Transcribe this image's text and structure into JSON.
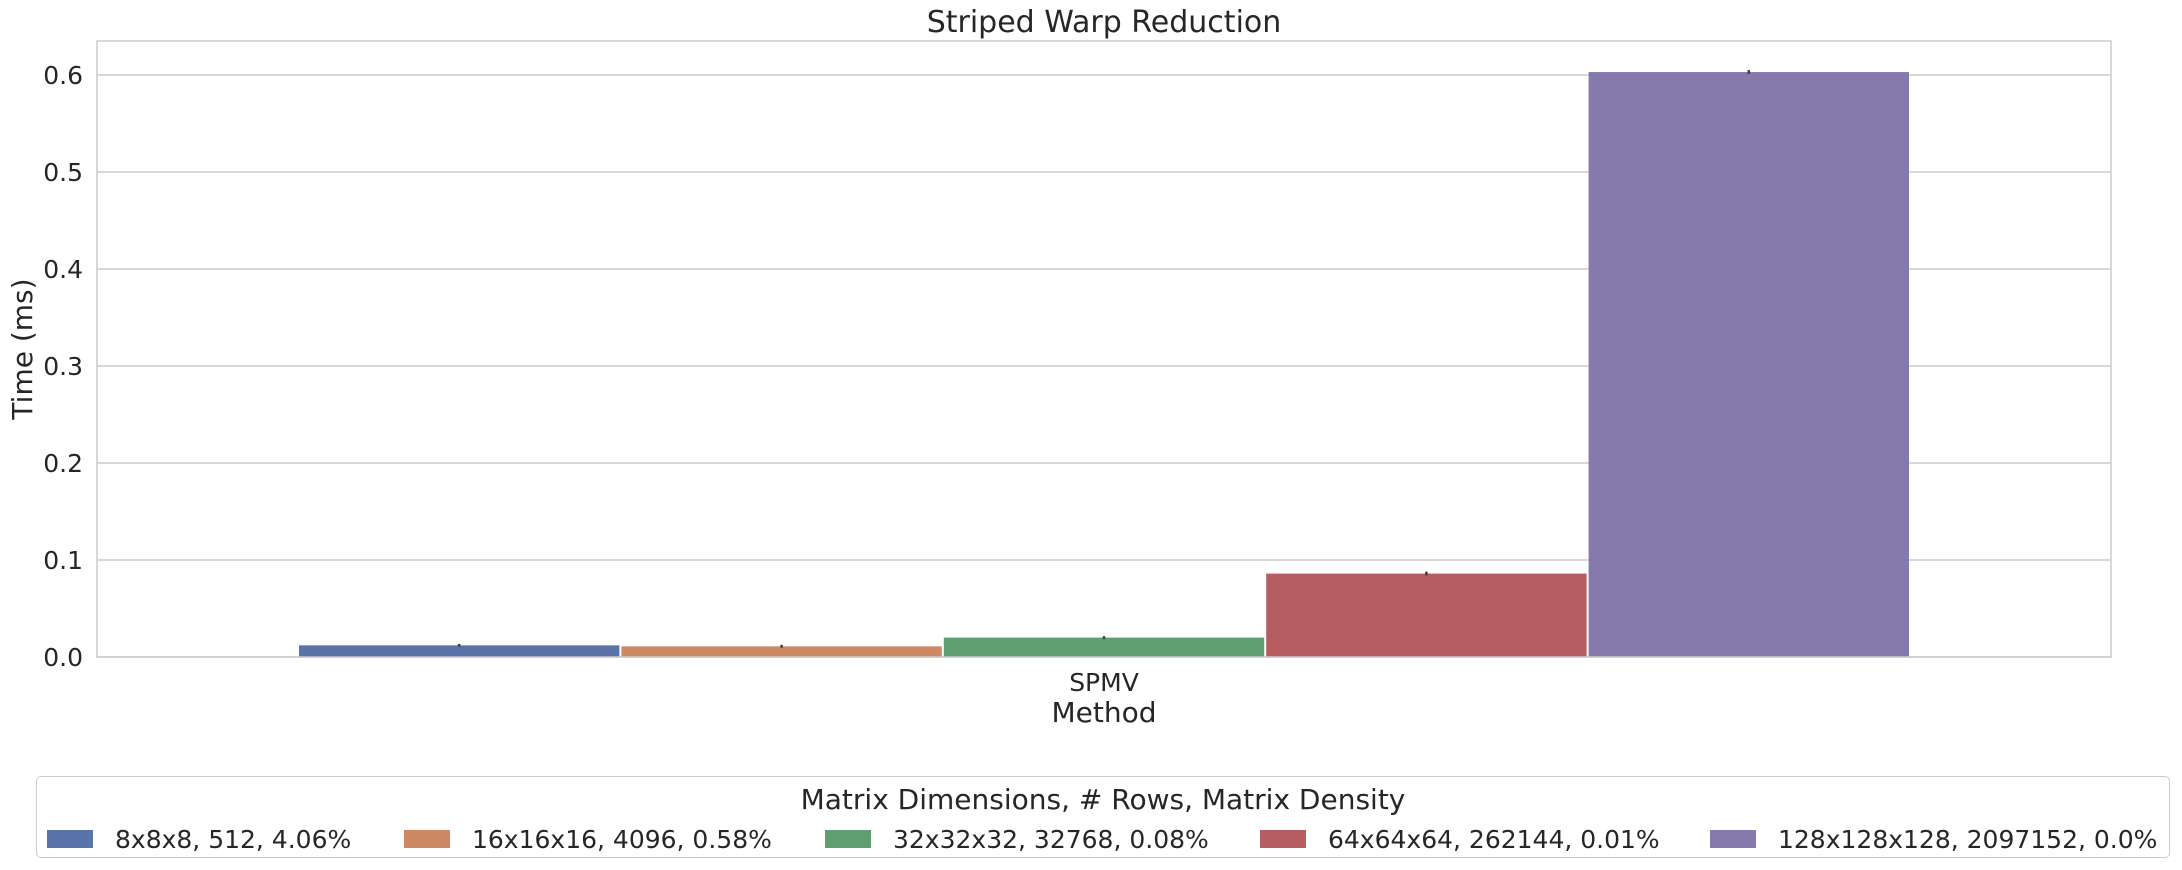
{
  "chart_data": {
    "type": "bar",
    "title": "Striped Warp Reduction",
    "xlabel": "Method",
    "ylabel": "Time (ms)",
    "categories": [
      "SPMV"
    ],
    "ylim": [
      0,
      0.635
    ],
    "yticks": [
      "0.0",
      "0.1",
      "0.2",
      "0.3",
      "0.4",
      "0.5",
      "0.6"
    ],
    "grid": true,
    "legend_title": "Matrix Dimensions, # Rows, Matrix Density",
    "legend_position": "bottom",
    "series": [
      {
        "name": "8x8x8, 512, 4.06%",
        "values": [
          0.012
        ],
        "error": [
          0.0015
        ],
        "color": "#5874a8"
      },
      {
        "name": "16x16x16, 4096, 0.58%",
        "values": [
          0.011
        ],
        "error": [
          0.0015
        ],
        "color": "#cc8963"
      },
      {
        "name": "32x32x32, 32768, 0.08%",
        "values": [
          0.02
        ],
        "error": [
          0.0015
        ],
        "color": "#5f9e6e"
      },
      {
        "name": "64x64x64, 262144, 0.01%",
        "values": [
          0.086
        ],
        "error": [
          0.002
        ],
        "color": "#b55d60"
      },
      {
        "name": "128x128x128, 2097152, 0.0%",
        "values": [
          0.603
        ],
        "error": [
          0.002
        ],
        "color": "#857aab"
      }
    ]
  }
}
